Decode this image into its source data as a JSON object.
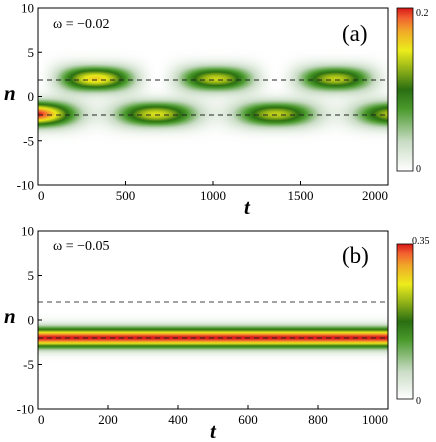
{
  "chart_data": [
    {
      "type": "heatmap",
      "panel_label": "(a)",
      "omega_label": "ω = −0.02",
      "xlabel": "t",
      "ylabel": "n",
      "xlim": [
        0,
        2000
      ],
      "ylim": [
        -10,
        10
      ],
      "xticks": [
        "0",
        "500",
        "1000",
        "1500",
        "2000"
      ],
      "yticks": [
        "10",
        "5",
        "0",
        "-5",
        "-10"
      ],
      "colorbar": {
        "min": 0,
        "max": 0.2,
        "tick_labels": [
          "0.2",
          "0"
        ]
      },
      "dashed_lines_n": [
        2,
        -2
      ],
      "oscillation_period_t": 680,
      "description": "Density alternates between sites near n=-2 and n=+2"
    },
    {
      "type": "heatmap",
      "panel_label": "(b)",
      "omega_label": "ω = −0.05",
      "xlabel": "t",
      "ylabel": "n",
      "xlim": [
        0,
        1000
      ],
      "ylim": [
        -10,
        10
      ],
      "xticks": [
        "0",
        "200",
        "400",
        "600",
        "800",
        "1000"
      ],
      "yticks": [
        "10",
        "5",
        "0",
        "-5",
        "-10"
      ],
      "colorbar": {
        "min": 0,
        "max": 0.35,
        "tick_labels": [
          "0.35",
          "0"
        ]
      },
      "dashed_lines_n": [
        2,
        -2
      ],
      "description": "Density stays localized near n=-2 for all t"
    }
  ],
  "colors": {
    "ramp": [
      "#ffffff",
      "#c9dcc5",
      "#4a9a2c",
      "#2a6e12",
      "#8fb018",
      "#ecec1c",
      "#f0a828",
      "#f26030",
      "#d81818"
    ]
  }
}
